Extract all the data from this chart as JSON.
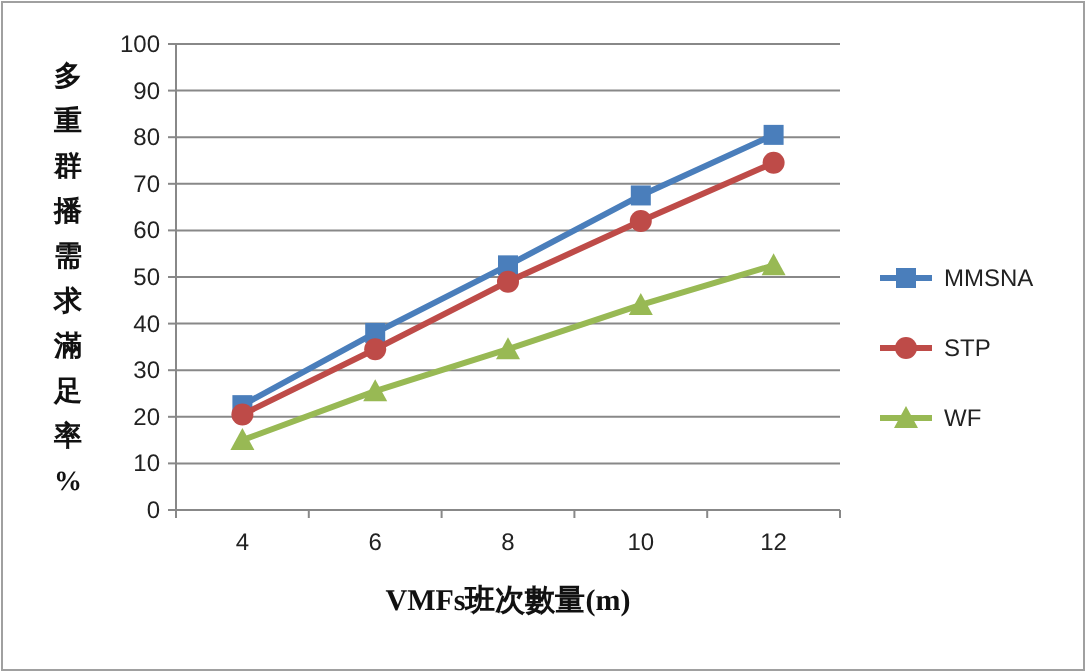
{
  "chart_data": {
    "type": "line",
    "xlabel": "VMFs班次數量(m)",
    "ylabel": "多重群播需求滿足率%",
    "categories": [
      "4",
      "6",
      "8",
      "10",
      "12"
    ],
    "series": [
      {
        "name": "MMSNA",
        "color": "#4a7ebb",
        "marker": "square",
        "values": [
          22.5,
          38,
          52.5,
          67.5,
          80.5
        ]
      },
      {
        "name": "STP",
        "color": "#be4b48",
        "marker": "circle",
        "values": [
          20.5,
          34.5,
          49,
          62,
          74.5
        ]
      },
      {
        "name": "WF",
        "color": "#98b954",
        "marker": "triangle",
        "values": [
          15,
          25.5,
          34.5,
          44,
          52.5
        ]
      }
    ],
    "ylim": [
      0,
      100
    ],
    "yticks": [
      0,
      10,
      20,
      30,
      40,
      50,
      60,
      70,
      80,
      90,
      100
    ],
    "grid": "y",
    "legend": "right",
    "line_style": "solid"
  }
}
